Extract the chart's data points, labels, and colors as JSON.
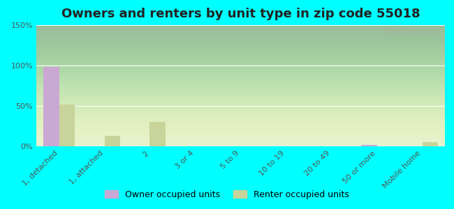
{
  "title": "Owners and renters by unit type in zip code 55018",
  "categories": [
    "1, detached",
    "1, attached",
    "2",
    "3 or 4",
    "5 to 9",
    "10 to 19",
    "20 to 49",
    "50 or more",
    "Mobile home"
  ],
  "owner_values": [
    98,
    0,
    0,
    0,
    0,
    0,
    0,
    2,
    0
  ],
  "renter_values": [
    52,
    13,
    30,
    0,
    0,
    0,
    0,
    0,
    5
  ],
  "owner_color": "#c9a8d4",
  "renter_color": "#c8d49a",
  "background_color": "#00ffff",
  "ylim": [
    0,
    150
  ],
  "yticks": [
    0,
    50,
    100,
    150
  ],
  "ytick_labels": [
    "0%",
    "50%",
    "100%",
    "150%"
  ],
  "watermark": "City-Data.com",
  "legend_owner": "Owner occupied units",
  "legend_renter": "Renter occupied units",
  "title_fontsize": 13,
  "tick_fontsize": 8,
  "legend_fontsize": 9,
  "bar_width": 0.35
}
